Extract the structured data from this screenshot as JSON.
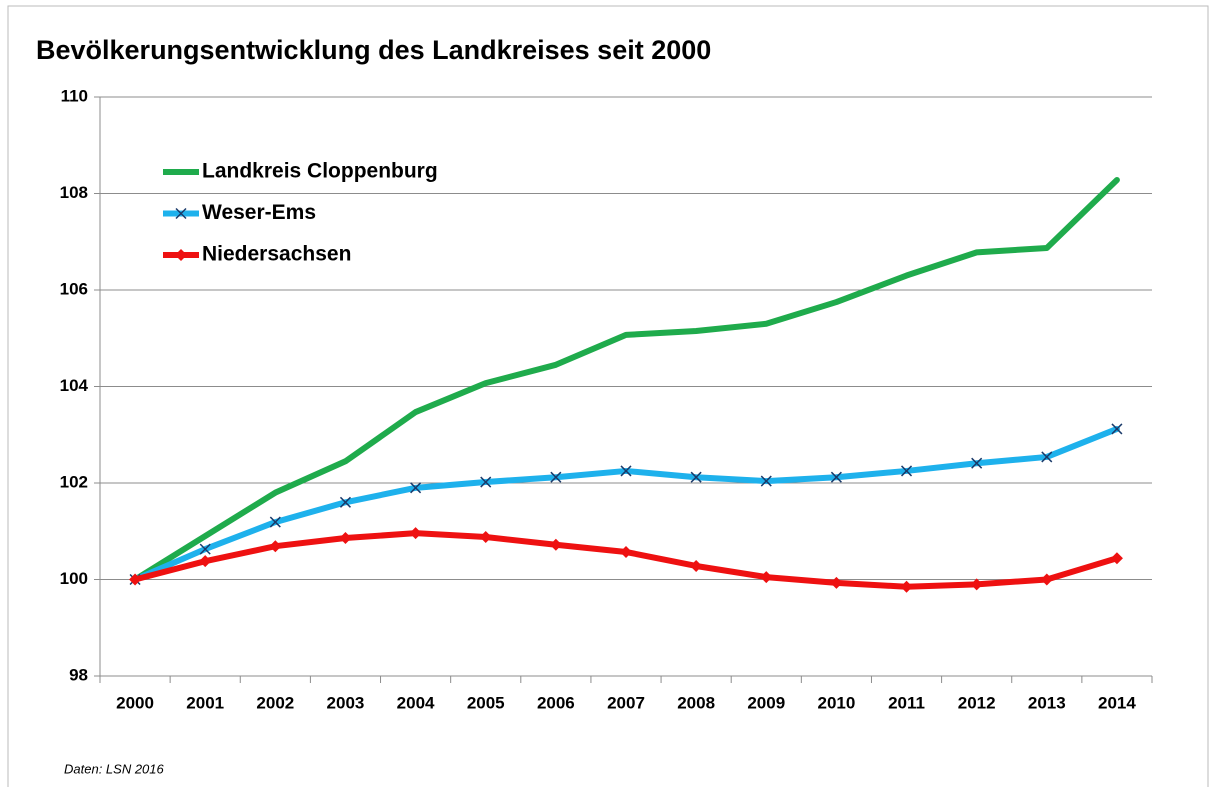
{
  "chart_data": {
    "type": "line",
    "title": "Bevölkerungsentwicklung des Landkreises seit 2000",
    "note": "Daten: LSN 2016",
    "categories": [
      "2000",
      "2001",
      "2002",
      "2003",
      "2004",
      "2005",
      "2006",
      "2007",
      "2008",
      "2009",
      "2010",
      "2011",
      "2012",
      "2013",
      "2014"
    ],
    "series": [
      {
        "name": "Landkreis Cloppenburg",
        "color": "#1fab4c",
        "marker": "none",
        "values": [
          100,
          100.9,
          101.8,
          102.45,
          103.47,
          104.07,
          104.45,
          105.07,
          105.15,
          105.3,
          105.75,
          106.3,
          106.78,
          106.87,
          108.28
        ]
      },
      {
        "name": "Weser-Ems",
        "color": "#1eb1ec",
        "marker": "x",
        "values": [
          100,
          100.63,
          101.19,
          101.6,
          101.9,
          102.02,
          102.12,
          102.25,
          102.12,
          102.04,
          102.12,
          102.25,
          102.41,
          102.54,
          103.12
        ]
      },
      {
        "name": "Niedersachsen",
        "color": "#ee1111",
        "marker": "diamond",
        "values": [
          100,
          100.38,
          100.69,
          100.86,
          100.96,
          100.88,
          100.72,
          100.57,
          100.28,
          100.05,
          99.93,
          99.85,
          99.9,
          100,
          100.44
        ]
      }
    ],
    "ylim": [
      98,
      110
    ],
    "yticks": [
      98,
      100,
      102,
      104,
      106,
      108,
      110
    ],
    "grid": true,
    "legend": "top-left"
  }
}
